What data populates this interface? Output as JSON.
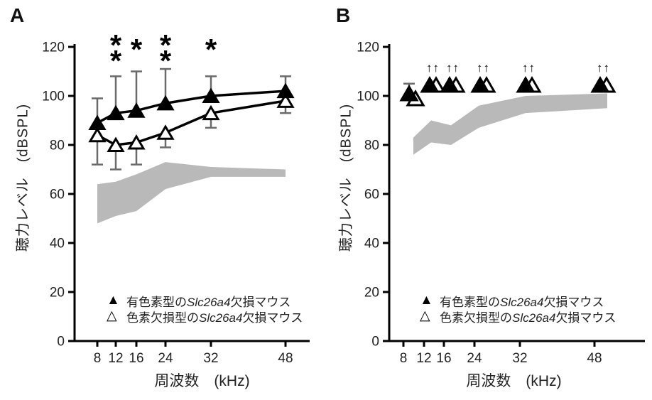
{
  "panels": [
    {
      "label": "A"
    },
    {
      "label": "B"
    }
  ],
  "legend": {
    "entries": [
      {
        "glyph": "▲",
        "marker": "filled-triangle",
        "prefix": "有色素型の",
        "gene": "Slc26a4",
        "suffix": "欠損マウス"
      },
      {
        "glyph": "△",
        "marker": "open-triangle",
        "prefix": "色素欠損型の",
        "gene": "Slc26a4",
        "suffix": "欠損マウス"
      }
    ]
  },
  "colors": {
    "marker": "#000000",
    "line": "#000000",
    "error_bar": "#6a6a6a",
    "band": "#b9b9b9",
    "text": "#222222"
  },
  "chart_data": [
    {
      "panel": "A",
      "type": "line",
      "x": [
        8,
        12,
        16,
        24,
        32,
        48
      ],
      "xticklabels": [
        "8",
        "12",
        "16",
        "24",
        "32",
        "48"
      ],
      "xlabel": "周波数　(kHz)",
      "ylabel": "聴力レベル　(dBSPL)",
      "ylim": [
        0,
        120
      ],
      "yticks": [
        0,
        20,
        40,
        60,
        80,
        100,
        120
      ],
      "grid": false,
      "legend_position": "lower-center-inside",
      "series": [
        {
          "name": "有色素型のSlc26a4欠損マウス",
          "marker": "filled-triangle",
          "line": true,
          "values": [
            89,
            93,
            94,
            97,
            100,
            102
          ],
          "err_up": [
            10,
            15,
            16,
            14,
            8,
            6
          ]
        },
        {
          "name": "色素欠損型のSlc26a4欠損マウス",
          "marker": "open-triangle",
          "line": true,
          "values": [
            84,
            80,
            81,
            85,
            93,
            98
          ],
          "err_down": [
            12,
            10,
            9,
            6,
            6,
            5
          ]
        }
      ],
      "band": {
        "upper": [
          64,
          65,
          68,
          73,
          71,
          70
        ],
        "lower": [
          48,
          51,
          53,
          62,
          67,
          67
        ]
      },
      "significance": [
        {
          "x": 12,
          "label": "**"
        },
        {
          "x": 16,
          "label": "*"
        },
        {
          "x": 24,
          "label": "**"
        },
        {
          "x": 32,
          "label": "*"
        }
      ]
    },
    {
      "panel": "B",
      "type": "scatter",
      "x": [
        8,
        12,
        16,
        24,
        32,
        48
      ],
      "xticklabels": [
        "8",
        "12",
        "16",
        "24",
        "32",
        "48"
      ],
      "xlabel": "周波数　(kHz)",
      "ylabel": "聴力レベル　(dBSPL)",
      "ylim": [
        0,
        120
      ],
      "yticks": [
        0,
        20,
        40,
        60,
        80,
        100,
        120
      ],
      "grid": false,
      "legend_position": "lower-center-inside",
      "series": [
        {
          "name": "有色素型のSlc26a4欠損マウス",
          "marker": "filled-triangle",
          "line": false,
          "values": [
            101,
            104.5,
            104.5,
            104.5,
            104.5,
            104.5
          ],
          "err_up": [
            4,
            0,
            0,
            0,
            0,
            0
          ]
        },
        {
          "name": "色素欠損型のSlc26a4欠損マウス",
          "marker": "open-triangle",
          "line": false,
          "values": [
            99,
            104.5,
            104.5,
            104.5,
            104.5,
            104.5
          ],
          "err_down": [
            2,
            0,
            0,
            0,
            0,
            0
          ]
        }
      ],
      "band": {
        "upper": [
          83,
          90,
          88,
          96,
          100,
          101
        ],
        "lower": [
          76,
          81,
          80,
          87,
          93,
          95
        ]
      },
      "scale_out_arrows": {
        "label": "↑↑",
        "x": [
          12,
          16,
          24,
          32,
          48
        ]
      }
    }
  ]
}
